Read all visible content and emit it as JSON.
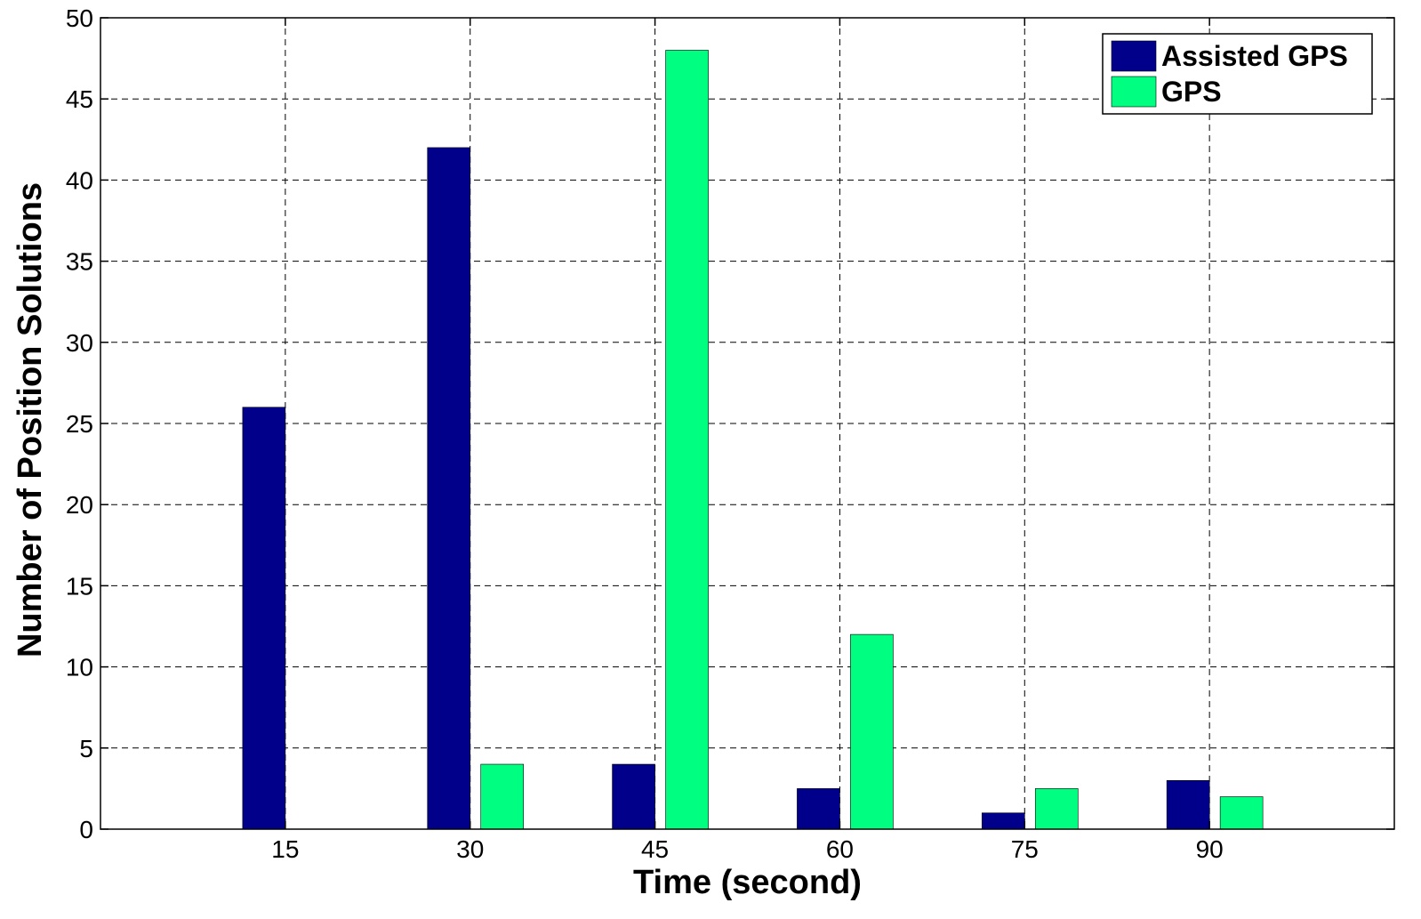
{
  "chart_data": {
    "type": "bar",
    "title": "",
    "xlabel": "Time (second)",
    "ylabel": "Number of Position Solutions",
    "categories": [
      "15",
      "30",
      "45",
      "60",
      "75",
      "90"
    ],
    "xlim": [
      0,
      105
    ],
    "ylim": [
      0,
      50
    ],
    "yticks": [
      0,
      5,
      10,
      15,
      20,
      25,
      30,
      35,
      40,
      45,
      50
    ],
    "grid": true,
    "legend_position": "top-right",
    "series": [
      {
        "name": "Assisted GPS",
        "color": "#00008b",
        "values": [
          26,
          42,
          4,
          2.5,
          1,
          3
        ]
      },
      {
        "name": "GPS",
        "color": "#00ff80",
        "values": [
          0,
          4,
          48,
          12,
          2.5,
          2
        ]
      }
    ]
  }
}
